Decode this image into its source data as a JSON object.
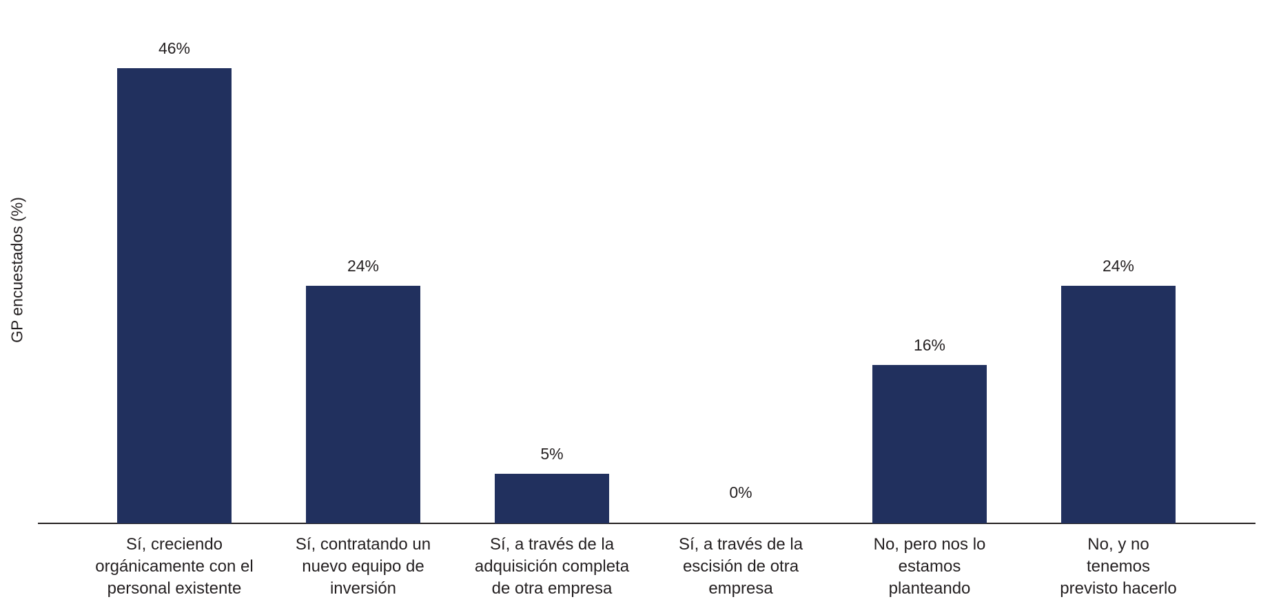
{
  "chart_data": {
    "type": "bar",
    "title": "",
    "xlabel": "",
    "ylabel": "GP encuestados (%)",
    "ylim": [
      0,
      50
    ],
    "grid": false,
    "legend": null,
    "categories": [
      "Sí, creciendo orgánicamente con el personal existente",
      "Sí, contratando un nuevo equipo de inversión",
      "Sí, a través de la adquisición completa de otra empresa",
      "Sí, a través de la escisión de otra empresa",
      "No, pero nos lo estamos planteando",
      "No, y no tenemos previsto hacerlo"
    ],
    "category_lines": [
      [
        "Sí, creciendo",
        "orgánicamente con el",
        "personal existente"
      ],
      [
        "Sí, contratando un",
        "nuevo equipo de",
        "inversión"
      ],
      [
        "Sí, a través de la",
        "adquisición completa",
        "de otra empresa"
      ],
      [
        "Sí, a través de la",
        "escisión de otra",
        "empresa"
      ],
      [
        "No, pero nos lo",
        "estamos",
        "planteando"
      ],
      [
        "No, y no",
        "tenemos",
        "previsto hacerlo"
      ]
    ],
    "values": [
      46,
      24,
      5,
      0,
      16,
      24
    ],
    "value_labels": [
      "46%",
      "24%",
      "5%",
      "0%",
      "16%",
      "24%"
    ],
    "bar_color": "#21305e",
    "text_color": "#231f20"
  }
}
